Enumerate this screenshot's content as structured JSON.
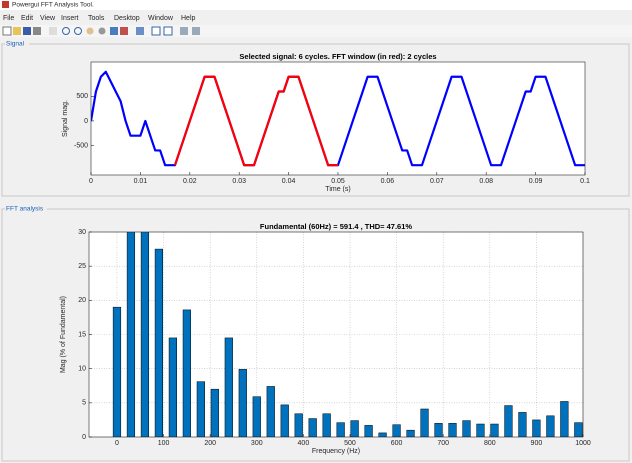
{
  "window": {
    "title": "Powergui FFT Analysis Tool.",
    "menu": [
      "File",
      "Edit",
      "View",
      "Insert",
      "Tools",
      "Desktop",
      "Window",
      "Help"
    ]
  },
  "panels": [
    "Signal",
    "FFT analysis"
  ],
  "chart_data": [
    {
      "type": "line",
      "title": "Selected signal: 6 cycles. FFT window (in red): 2 cycles",
      "xlabel": "Time (s)",
      "ylabel": "Signal mag.",
      "x": [
        0,
        0.001,
        0.002,
        0.003,
        0.004,
        0.005,
        0.006,
        0.007,
        0.008,
        0.009,
        0.01,
        0.011,
        0.012,
        0.013,
        0.014,
        0.015,
        0.016,
        0.017,
        0.018,
        0.019,
        0.02,
        0.021,
        0.022,
        0.023,
        0.024,
        0.025,
        0.026,
        0.027,
        0.028,
        0.029,
        0.03,
        0.031,
        0.032,
        0.033,
        0.034,
        0.035,
        0.036,
        0.037,
        0.038,
        0.039,
        0.04,
        0.041,
        0.042,
        0.043,
        0.044,
        0.045,
        0.046,
        0.047,
        0.048,
        0.049,
        0.05,
        0.051,
        0.052,
        0.053,
        0.054,
        0.055,
        0.056,
        0.057,
        0.058,
        0.059,
        0.06,
        0.061,
        0.062,
        0.063,
        0.064,
        0.065,
        0.066,
        0.067,
        0.068,
        0.069,
        0.07,
        0.071,
        0.072,
        0.073,
        0.074,
        0.075,
        0.076,
        0.077,
        0.078,
        0.079,
        0.08,
        0.081,
        0.082,
        0.083,
        0.084,
        0.085,
        0.086,
        0.087,
        0.088,
        0.089,
        0.09,
        0.091,
        0.092,
        0.093,
        0.094,
        0.095,
        0.096,
        0.097,
        0.098,
        0.099,
        0.1
      ],
      "series": [
        {
          "color": "#0000ff",
          "values": [
            0,
            600,
            900,
            1000,
            800,
            600,
            400,
            0,
            -300,
            -300,
            -300,
            0,
            -300,
            -600,
            -600,
            -900,
            -900,
            -900,
            -600,
            -300,
            0,
            300,
            600,
            900,
            900,
            900,
            600,
            300,
            0,
            -300,
            -600,
            -900,
            -900,
            -900,
            -600,
            -300,
            0,
            300,
            600,
            600,
            900,
            900,
            900,
            600,
            300,
            0,
            -300,
            -600,
            -900,
            -900,
            -900,
            -600,
            -300,
            0,
            300,
            600,
            900,
            900,
            900,
            600,
            300,
            0,
            -300,
            -600,
            -600,
            -900,
            -900,
            -900,
            -600,
            -300,
            0,
            300,
            600,
            900,
            900,
            900,
            600,
            300,
            0,
            -300,
            -600,
            -900,
            -900,
            -900,
            -600,
            -300,
            0,
            300,
            600,
            600,
            900,
            900,
            900,
            600,
            300,
            0,
            -300,
            -600,
            -900,
            -900,
            -900
          ]
        }
      ],
      "fft_window": {
        "xlim": [
          0.01667,
          0.05
        ],
        "color": "#ff0000"
      },
      "xlim": [
        0,
        0.1
      ],
      "xticks": [
        0,
        0.01,
        0.02,
        0.03,
        0.04,
        0.05,
        0.06,
        0.07,
        0.08,
        0.09,
        0.1
      ],
      "ylim": [
        -1100,
        1200
      ],
      "yticks": [
        -500,
        0,
        500
      ],
      "grid": false
    },
    {
      "type": "bar",
      "title": "Fundamental (60Hz) = 591.4 , THD= 47.61%",
      "xlabel": "Frequency (Hz)",
      "ylabel": "Mag (% of Fundamental)",
      "x": [
        0,
        30,
        60,
        90,
        120,
        150,
        180,
        210,
        240,
        270,
        300,
        330,
        360,
        390,
        420,
        450,
        480,
        510,
        540,
        570,
        600,
        630,
        660,
        690,
        720,
        750,
        780,
        810,
        840,
        870,
        900,
        930,
        960,
        990
      ],
      "values": [
        19,
        30.5,
        30.5,
        27.5,
        14.5,
        18.6,
        8.1,
        7.0,
        14.5,
        9.9,
        5.9,
        7.4,
        4.7,
        3.4,
        2.7,
        3.4,
        2.1,
        2.4,
        1.7,
        0.6,
        1.8,
        1.0,
        4.1,
        2.0,
        2.0,
        2.4,
        1.9,
        1.9,
        4.6,
        3.6,
        2.5,
        3.1,
        5.2,
        2.1
      ],
      "color": "#0072bd",
      "edgecolor": "#000000",
      "xlim": [
        -60,
        1000
      ],
      "xticks": [
        0,
        100,
        200,
        300,
        400,
        500,
        600,
        700,
        800,
        900,
        1000
      ],
      "ylim": [
        0,
        30
      ],
      "yticks": [
        0,
        5,
        10,
        15,
        20,
        25,
        30
      ],
      "grid": true
    }
  ]
}
